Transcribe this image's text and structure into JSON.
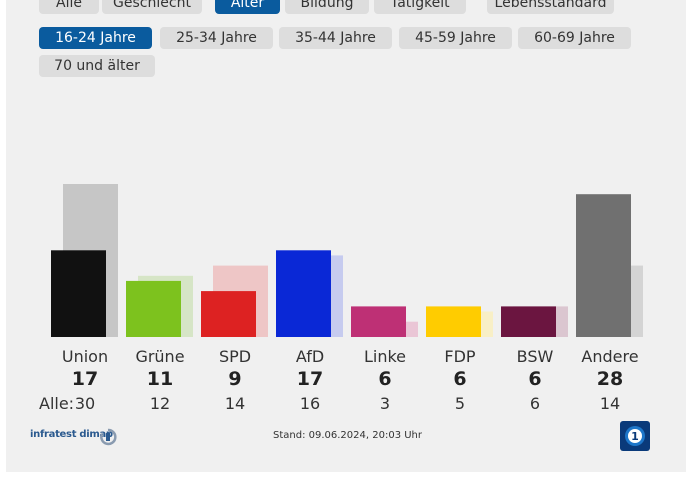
{
  "filters": {
    "groups": [
      {
        "label": "Alle",
        "active": false
      },
      {
        "label": "Geschlecht",
        "active": false
      },
      {
        "label": "Alter",
        "active": true
      },
      {
        "label": "Bildung",
        "active": false
      },
      {
        "label": "Tätigkeit",
        "active": false
      },
      {
        "label": "Lebensstandard",
        "active": false
      }
    ],
    "age_groups": [
      {
        "label": "16-24 Jahre",
        "active": true
      },
      {
        "label": "25-34 Jahre",
        "active": false
      },
      {
        "label": "35-44 Jahre",
        "active": false
      },
      {
        "label": "45-59 Jahre",
        "active": false
      },
      {
        "label": "60-69 Jahre",
        "active": false
      },
      {
        "label": "70 und älter",
        "active": false
      }
    ]
  },
  "chart_data": {
    "type": "bar",
    "categories": [
      "Union",
      "Grüne",
      "SPD",
      "AfD",
      "Linke",
      "FDP",
      "BSW",
      "Andere"
    ],
    "series": [
      {
        "values": [
          17,
          11,
          9,
          17,
          6,
          6,
          6,
          28
        ]
      },
      {
        "values": [
          30,
          12,
          14,
          16,
          3,
          5,
          6,
          14
        ]
      }
    ],
    "prev_prefix": "Alle:",
    "colors": [
      "#111111",
      "#7dc21e",
      "#dd2222",
      "#0a28d6",
      "#be3075",
      "#ffcc00",
      "#6b1540",
      "#707070"
    ],
    "prev_colors": [
      "#c6c6c6",
      "#d6e5c6",
      "#eec6c6",
      "#c6cbef",
      "#eac6d6",
      "#f8efc6",
      "#dbc6d0",
      "#d4d4d4"
    ],
    "ylim": [
      0,
      30
    ],
    "grid": false
  },
  "footer": {
    "source": "infratest dimap",
    "stand": "Stand: 09.06.2024, 20:03 Uhr"
  }
}
